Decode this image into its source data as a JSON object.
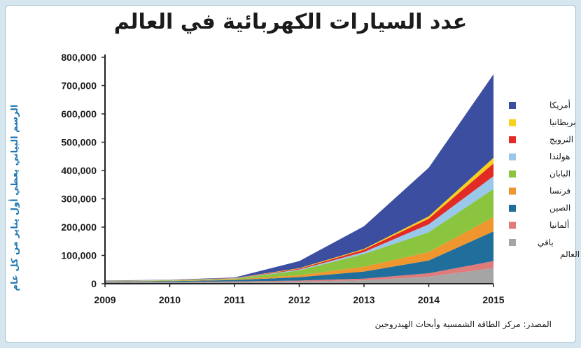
{
  "title": "عدد السيارات الكهربائية في العالم",
  "side_note": "الرسم البياني يغطي أول يناير من كل عام",
  "source": "المصدر: مركز الطاقة الشمسية وأبحاث الهيدروجين",
  "chart_data": {
    "type": "area",
    "stacked": true,
    "x": [
      2009,
      2010,
      2011,
      2012,
      2013,
      2014,
      2015
    ],
    "ylim": [
      0,
      800000
    ],
    "yticks": [
      "0",
      "100,000",
      "200,000",
      "300,000",
      "400,000",
      "500,000",
      "600,000",
      "700,000",
      "800,000"
    ],
    "xticks": [
      "2009",
      "2010",
      "2011",
      "2012",
      "2013",
      "2014",
      "2015"
    ],
    "legend_position": "right",
    "grid": false,
    "series": [
      {
        "name": "باقي دول العالم",
        "color": "#a5a5a5",
        "values": [
          4000,
          5000,
          6000,
          8000,
          12000,
          25000,
          55000
        ]
      },
      {
        "name": "ألمانيا",
        "color": "#e07b7b",
        "values": [
          1000,
          1000,
          2000,
          3000,
          6000,
          12000,
          25000
        ]
      },
      {
        "name": "الصين",
        "color": "#1f6e9c",
        "values": [
          2000,
          3000,
          5000,
          12000,
          25000,
          45000,
          105000
        ]
      },
      {
        "name": "فرنسا",
        "color": "#f0962e",
        "values": [
          1000,
          1000,
          2000,
          7000,
          17000,
          30000,
          50000
        ]
      },
      {
        "name": "اليابان",
        "color": "#8bc540",
        "values": [
          1000,
          1500,
          2500,
          17000,
          45000,
          70000,
          100000
        ]
      },
      {
        "name": "هولندا",
        "color": "#9ac8ea",
        "values": [
          500,
          500,
          1000,
          3000,
          7000,
          28000,
          45000
        ]
      },
      {
        "name": "النرويج",
        "color": "#e22a26",
        "values": [
          500,
          500,
          1000,
          3000,
          8000,
          20000,
          45000
        ]
      },
      {
        "name": "بريطانيا",
        "color": "#f7d11b",
        "values": [
          500,
          500,
          500,
          2000,
          3000,
          8000,
          20000
        ]
      },
      {
        "name": "أمريكا",
        "color": "#3b4ea0",
        "values": [
          1000,
          1000,
          2000,
          25000,
          80000,
          172000,
          295000
        ]
      }
    ]
  }
}
